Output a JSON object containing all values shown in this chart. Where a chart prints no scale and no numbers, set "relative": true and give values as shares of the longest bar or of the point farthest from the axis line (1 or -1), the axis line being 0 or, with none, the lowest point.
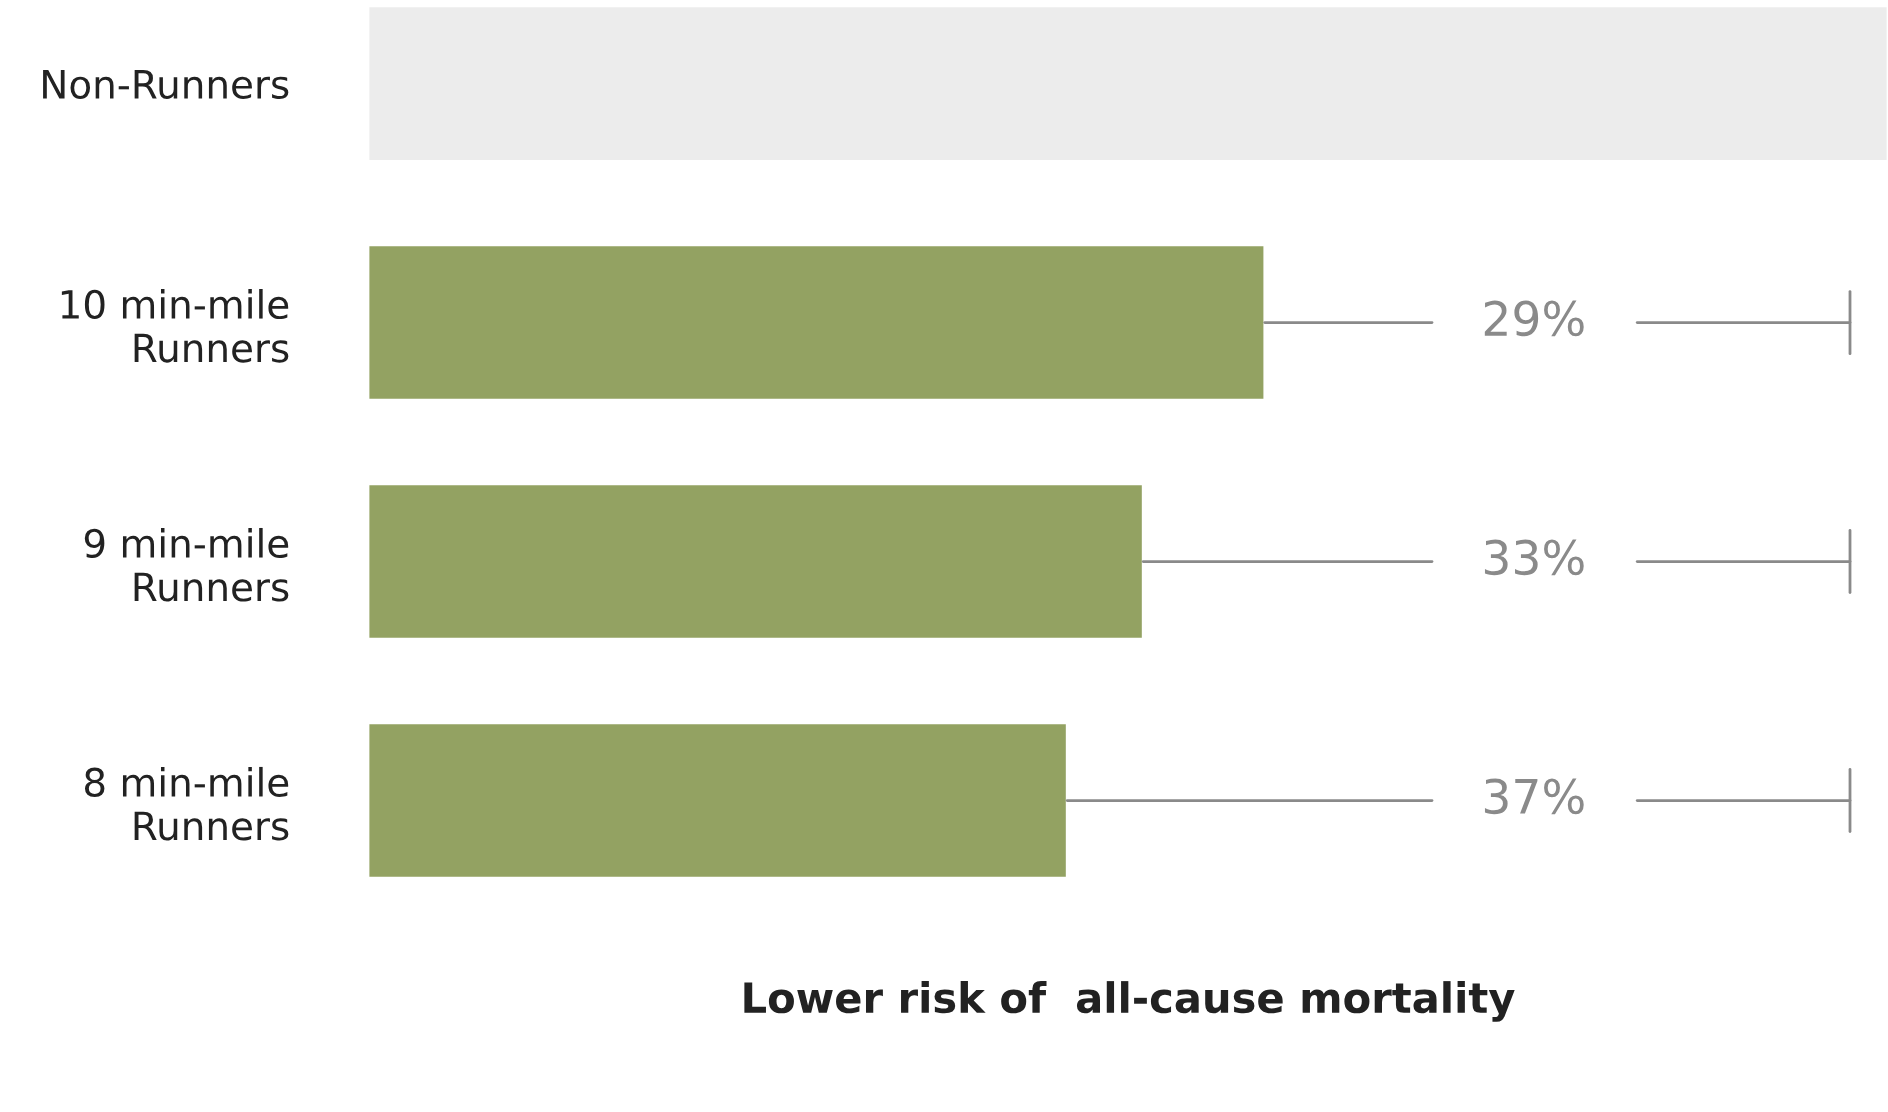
{
  "chart_data": {
    "type": "bar",
    "orientation": "horizontal",
    "relative": true,
    "categories": [
      "Non-Runners",
      "10 min-mile\nRunners",
      "9 min-mile\nRunners",
      "8 min-mile\nRunners"
    ],
    "values": [
      1,
      0.59,
      0.51,
      0.46
    ],
    "colors": [
      "#ececec",
      "#93a262",
      "#93a262",
      "#93a262"
    ],
    "annotations": [
      "29%",
      "33%",
      "37%"
    ],
    "xlabel": "Lower risk of  all-cause mortality",
    "grid": false,
    "legend": false
  }
}
